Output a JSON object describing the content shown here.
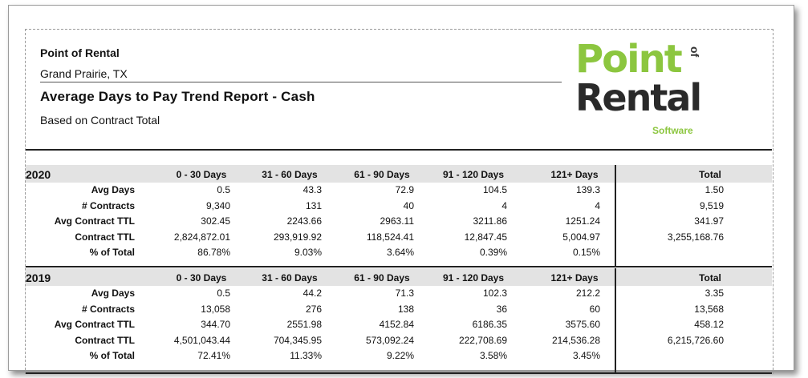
{
  "header": {
    "company": "Point of Rental",
    "location": "Grand Prairie, TX",
    "title": "Average Days to Pay Trend Report - Cash",
    "subtitle": "Based on Contract Total"
  },
  "logo": {
    "line1": "Point",
    "of": "of",
    "line2": "Rental",
    "tagline": "Software",
    "colors": {
      "green": "#8cc63f",
      "dark": "#2a2a2a"
    }
  },
  "columns": [
    "0 - 30 Days",
    "31 - 60 Days",
    "61 - 90 Days",
    "91 - 120 Days",
    "121+ Days",
    "Total"
  ],
  "row_labels": [
    "Avg Days",
    "# Contracts",
    "Avg Contract TTL",
    "Contract TTL",
    "% of Total"
  ],
  "years": [
    {
      "year": "2020",
      "rows": [
        [
          "0.5",
          "43.3",
          "72.9",
          "104.5",
          "139.3",
          "1.50"
        ],
        [
          "9,340",
          "131",
          "40",
          "4",
          "4",
          "9,519"
        ],
        [
          "302.45",
          "2243.66",
          "2963.11",
          "3211.86",
          "1251.24",
          "341.97"
        ],
        [
          "2,824,872.01",
          "293,919.92",
          "118,524.41",
          "12,847.45",
          "5,004.97",
          "3,255,168.76"
        ],
        [
          "86.78%",
          "9.03%",
          "3.64%",
          "0.39%",
          "0.15%",
          ""
        ]
      ]
    },
    {
      "year": "2019",
      "rows": [
        [
          "0.5",
          "44.2",
          "71.3",
          "102.3",
          "212.2",
          "3.35"
        ],
        [
          "13,058",
          "276",
          "138",
          "36",
          "60",
          "13,568"
        ],
        [
          "344.70",
          "2551.98",
          "4152.84",
          "6186.35",
          "3575.60",
          "458.12"
        ],
        [
          "4,501,043.44",
          "704,345.95",
          "573,092.24",
          "222,708.69",
          "214,536.28",
          "6,215,726.60"
        ],
        [
          "72.41%",
          "11.33%",
          "9.22%",
          "3.58%",
          "3.45%",
          ""
        ]
      ]
    }
  ]
}
